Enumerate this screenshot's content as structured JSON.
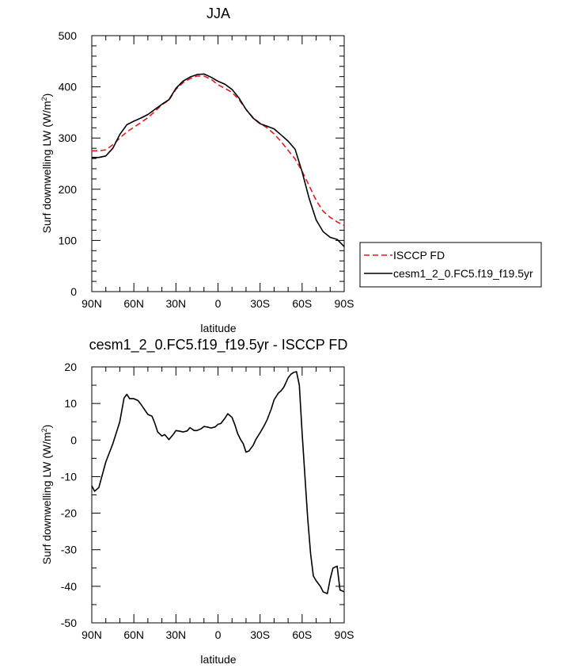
{
  "chart_data": [
    {
      "type": "line",
      "title": "JJA",
      "xlabel": "latitude",
      "ylabel": "Surf downwelling LW (W/m",
      "ylabel_sup": "2",
      "ylabel_close": ")",
      "xlim": [
        90,
        -90
      ],
      "ylim": [
        0,
        500
      ],
      "xticks": [
        {
          "value": 90,
          "label": "90N"
        },
        {
          "value": 60,
          "label": "60N"
        },
        {
          "value": 30,
          "label": "30N"
        },
        {
          "value": 0,
          "label": "0"
        },
        {
          "value": -30,
          "label": "30S"
        },
        {
          "value": -60,
          "label": "60S"
        },
        {
          "value": -90,
          "label": "90S"
        }
      ],
      "yticks": [
        {
          "value": 0,
          "label": "0"
        },
        {
          "value": 100,
          "label": "100"
        },
        {
          "value": 200,
          "label": "200"
        },
        {
          "value": 300,
          "label": "300"
        },
        {
          "value": 400,
          "label": "400"
        },
        {
          "value": 500,
          "label": "500"
        }
      ],
      "legend_position": "right",
      "series": [
        {
          "name": "ISCCP FD",
          "color": "#e41a1c",
          "dash": "dashed",
          "x": [
            90,
            85,
            80,
            75,
            70,
            65,
            60,
            55,
            50,
            45,
            40,
            35,
            30,
            25,
            20,
            15,
            10,
            5,
            0,
            -5,
            -10,
            -15,
            -20,
            -25,
            -30,
            -35,
            -40,
            -45,
            -50,
            -55,
            -60,
            -65,
            -70,
            -75,
            -80,
            -85,
            -90
          ],
          "y": [
            275,
            275,
            277,
            287,
            300,
            312,
            321,
            330,
            340,
            352,
            365,
            374,
            395,
            408,
            416,
            421,
            421,
            415,
            404,
            397,
            389,
            375,
            356,
            340,
            329,
            320,
            308,
            293,
            276,
            259,
            235,
            207,
            178,
            157,
            145,
            136,
            129
          ]
        },
        {
          "name": "cesm1_2_0.FC5.f19_f19.5yr",
          "color": "#000000",
          "dash": "solid",
          "x": [
            90,
            85,
            80,
            75,
            70,
            65,
            60,
            55,
            50,
            45,
            40,
            35,
            30,
            25,
            20,
            15,
            10,
            5,
            0,
            -5,
            -10,
            -15,
            -20,
            -25,
            -30,
            -35,
            -40,
            -45,
            -50,
            -55,
            -60,
            -65,
            -70,
            -75,
            -80,
            -85,
            -90
          ],
          "y": [
            262,
            262,
            265,
            280,
            307,
            326,
            333,
            339,
            346,
            356,
            366,
            375,
            397,
            411,
            419,
            424,
            425,
            419,
            411,
            405,
            395,
            378,
            356,
            339,
            328,
            323,
            318,
            306,
            294,
            278,
            234,
            182,
            140,
            117,
            106,
            102,
            88
          ]
        }
      ]
    },
    {
      "type": "line",
      "title": "cesm1_2_0.FC5.f19_f19.5yr - ISCCP FD",
      "xlabel": "latitude",
      "ylabel": "Surf downwelling LW (W/m",
      "ylabel_sup": "2",
      "ylabel_close": ")",
      "xlim": [
        90,
        -90
      ],
      "ylim": [
        -50,
        20
      ],
      "xticks": [
        {
          "value": 90,
          "label": "90N"
        },
        {
          "value": 60,
          "label": "60N"
        },
        {
          "value": 30,
          "label": "30N"
        },
        {
          "value": 0,
          "label": "0"
        },
        {
          "value": -30,
          "label": "30S"
        },
        {
          "value": -60,
          "label": "60S"
        },
        {
          "value": -90,
          "label": "90S"
        }
      ],
      "yticks": [
        {
          "value": -50,
          "label": "-50"
        },
        {
          "value": -40,
          "label": "-40"
        },
        {
          "value": -30,
          "label": "-30"
        },
        {
          "value": -20,
          "label": "-20"
        },
        {
          "value": -10,
          "label": "-10"
        },
        {
          "value": 0,
          "label": "0"
        },
        {
          "value": 10,
          "label": "10"
        },
        {
          "value": 20,
          "label": "20"
        }
      ],
      "series": [
        {
          "color": "#000000",
          "dash": "solid",
          "x": [
            90,
            88,
            85,
            80,
            75,
            70,
            67,
            65,
            63,
            60,
            57,
            55,
            50,
            47,
            45,
            43,
            40,
            38,
            35,
            32,
            30,
            27,
            25,
            22,
            20,
            17,
            15,
            12,
            10,
            7,
            5,
            2,
            0,
            -2,
            -5,
            -7,
            -10,
            -12,
            -14,
            -16,
            -18,
            -20,
            -22,
            -25,
            -27,
            -30,
            -33,
            -35,
            -38,
            -40,
            -43,
            -45,
            -47,
            -50,
            -52,
            -54,
            -56,
            -58,
            -60,
            -62,
            -64,
            -66,
            -68,
            -70,
            -73,
            -75,
            -78,
            -80,
            -82,
            -85,
            -87,
            -90
          ],
          "y": [
            -12.5,
            -14,
            -13,
            -6,
            -1,
            5,
            11.5,
            12.5,
            11.3,
            11.3,
            10.8,
            9.8,
            7,
            6.5,
            4.5,
            2.2,
            1.1,
            1.5,
            0.1,
            1.5,
            2.6,
            2.4,
            2.2,
            2.5,
            3.4,
            2.6,
            2.6,
            3.1,
            3.7,
            3.5,
            3.3,
            3.6,
            4.3,
            4.5,
            6.0,
            7.2,
            6.2,
            4.2,
            1.8,
            0.2,
            -1,
            -3.3,
            -3,
            -1.5,
            0.2,
            2,
            4,
            5.5,
            8.5,
            11,
            12.8,
            13.5,
            14.5,
            17,
            18,
            18.5,
            18.7,
            15,
            2,
            -10,
            -21.5,
            -31,
            -37.2,
            -38.5,
            -40,
            -41.5,
            -42,
            -38,
            -35,
            -34.5,
            -41,
            -41.5
          ]
        }
      ]
    }
  ]
}
